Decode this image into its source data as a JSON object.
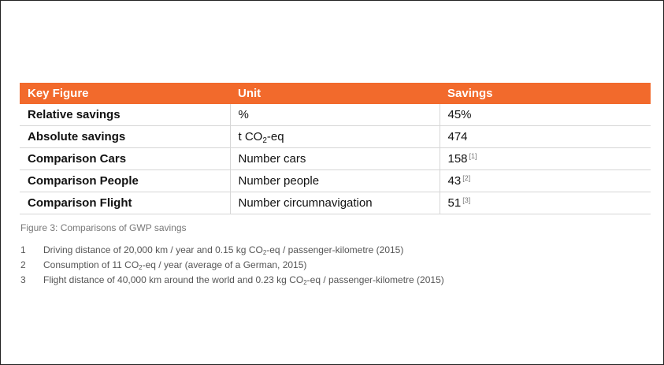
{
  "table": {
    "header": [
      "Key Figure",
      "Unit",
      "Savings"
    ],
    "rows": [
      [
        {
          "text": "Relative savings"
        },
        {
          "text": "%"
        },
        {
          "text": "45%"
        }
      ],
      [
        {
          "text": "Absolute savings"
        },
        {
          "text": "t CO",
          "sub": "2",
          "after": "-eq"
        },
        {
          "text": "474"
        }
      ],
      [
        {
          "text": "Comparison Cars"
        },
        {
          "text": "Number cars"
        },
        {
          "text": "158",
          "ref": "[1]"
        }
      ],
      [
        {
          "text": "Comparison People"
        },
        {
          "text": "Number people"
        },
        {
          "text": "43",
          "ref": "[2]"
        }
      ],
      [
        {
          "text": "Comparison Flight"
        },
        {
          "text": "Number circumnavigation"
        },
        {
          "text": "51",
          "ref": "[3]"
        }
      ]
    ]
  },
  "caption": "Figure 3: Comparisons of GWP savings",
  "footnotes": [
    {
      "number": "1",
      "text": "Driving distance of 20,000 km / year and 0.15 kg CO",
      "sub": "2",
      "after": "-eq / passenger-kilometre (2015)"
    },
    {
      "number": "2",
      "text": "Consumption of 11 CO",
      "sub": "2",
      "after": "-eq / year (average of a German, 2015)"
    },
    {
      "number": "3",
      "text": "Flight distance of 40,000 km around the world and 0.23 kg CO",
      "sub": "2",
      "after": "-eq / passenger-kilometre (2015)"
    }
  ]
}
